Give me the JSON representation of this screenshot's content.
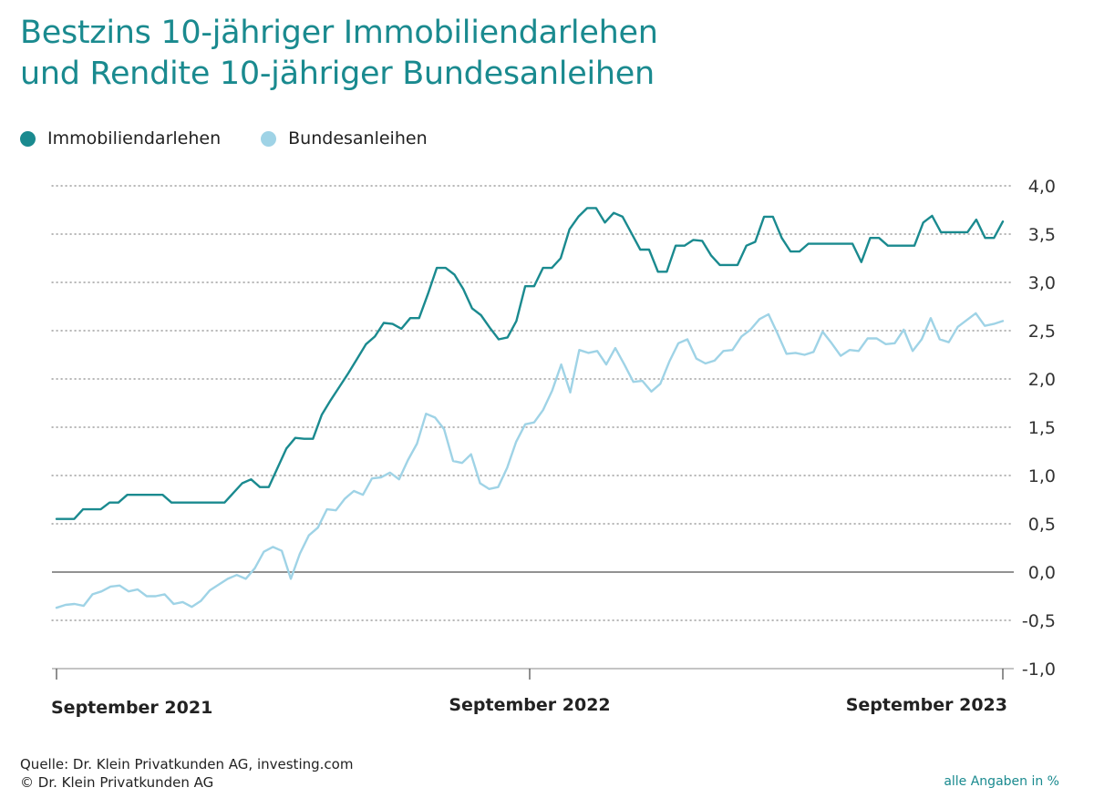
{
  "title_lines": [
    "Bestzins 10-jähriger Immobiliendarlehen",
    "und Rendite 10-jähriger Bundesanleihen"
  ],
  "legend": [
    {
      "label": "Immobiliendarlehen",
      "color": "#1a8a8f"
    },
    {
      "label": "Bundesanleihen",
      "color": "#9fd3e6"
    }
  ],
  "footer": {
    "source": "Quelle: Dr. Klein Privatkunden AG, investing.com",
    "copyright": "© Dr. Klein Privatkunden AG",
    "note": "alle Angaben in %"
  },
  "chart_data": {
    "type": "line",
    "title": "Bestzins 10-jähriger Immobiliendarlehen und Rendite 10-jähriger Bundesanleihen",
    "xlabel": "",
    "ylabel": "",
    "x_ticks": [
      "September 2021",
      "September 2022",
      "September 2023"
    ],
    "y_ticks": [
      "4,0",
      "3,5",
      "3,0",
      "2,5",
      "2,0",
      "1,5",
      "1,0",
      "0,5",
      "0,0",
      "-0,5",
      "-1,0"
    ],
    "ylim": [
      -1.0,
      4.0
    ],
    "grid": "horizontal dotted",
    "zero_line": true,
    "y_axis_position": "right",
    "legend_position": "top-left",
    "series": [
      {
        "name": "Immobiliendarlehen",
        "color": "#1a8a8f",
        "values": [
          0.55,
          0.55,
          0.55,
          0.65,
          0.65,
          0.65,
          0.72,
          0.72,
          0.8,
          0.8,
          0.8,
          0.8,
          0.8,
          0.72,
          0.72,
          0.72,
          0.72,
          0.72,
          0.72,
          0.72,
          0.82,
          0.92,
          0.96,
          0.88,
          0.88,
          1.08,
          1.28,
          1.39,
          1.38,
          1.38,
          1.63,
          1.78,
          1.92,
          2.06,
          2.21,
          2.36,
          2.44,
          2.58,
          2.57,
          2.52,
          2.63,
          2.63,
          2.88,
          3.15,
          3.15,
          3.08,
          2.93,
          2.73,
          2.66,
          2.53,
          2.41,
          2.43,
          2.6,
          2.96,
          2.96,
          3.15,
          3.15,
          3.25,
          3.55,
          3.68,
          3.77,
          3.77,
          3.62,
          3.72,
          3.68,
          3.51,
          3.34,
          3.34,
          3.11,
          3.11,
          3.38,
          3.38,
          3.44,
          3.43,
          3.28,
          3.18,
          3.18,
          3.18,
          3.38,
          3.42,
          3.68,
          3.68,
          3.46,
          3.32,
          3.32,
          3.4,
          3.4,
          3.4,
          3.4,
          3.4,
          3.4,
          3.21,
          3.46,
          3.46,
          3.38,
          3.38,
          3.38,
          3.38,
          3.62,
          3.69,
          3.52,
          3.52,
          3.52,
          3.52,
          3.65,
          3.46,
          3.46,
          3.63
        ]
      },
      {
        "name": "Bundesanleihen",
        "color": "#9fd3e6",
        "values": [
          -0.37,
          -0.34,
          -0.33,
          -0.35,
          -0.23,
          -0.2,
          -0.15,
          -0.14,
          -0.2,
          -0.18,
          -0.25,
          -0.25,
          -0.23,
          -0.33,
          -0.31,
          -0.36,
          -0.3,
          -0.19,
          -0.13,
          -0.07,
          -0.03,
          -0.07,
          0.04,
          0.21,
          0.26,
          0.22,
          -0.07,
          0.19,
          0.38,
          0.46,
          0.65,
          0.64,
          0.76,
          0.84,
          0.8,
          0.97,
          0.98,
          1.03,
          0.96,
          1.16,
          1.33,
          1.64,
          1.6,
          1.48,
          1.15,
          1.13,
          1.22,
          0.92,
          0.86,
          0.88,
          1.08,
          1.35,
          1.53,
          1.55,
          1.68,
          1.88,
          2.15,
          1.86,
          2.3,
          2.27,
          2.29,
          2.15,
          2.32,
          2.15,
          1.97,
          1.98,
          1.87,
          1.95,
          2.18,
          2.37,
          2.41,
          2.21,
          2.16,
          2.19,
          2.29,
          2.3,
          2.44,
          2.51,
          2.62,
          2.67,
          2.47,
          2.26,
          2.27,
          2.25,
          2.28,
          2.49,
          2.37,
          2.24,
          2.3,
          2.29,
          2.42,
          2.42,
          2.36,
          2.37,
          2.51,
          2.29,
          2.41,
          2.63,
          2.41,
          2.38,
          2.54,
          2.61,
          2.68,
          2.55,
          2.57,
          2.6
        ]
      }
    ]
  }
}
